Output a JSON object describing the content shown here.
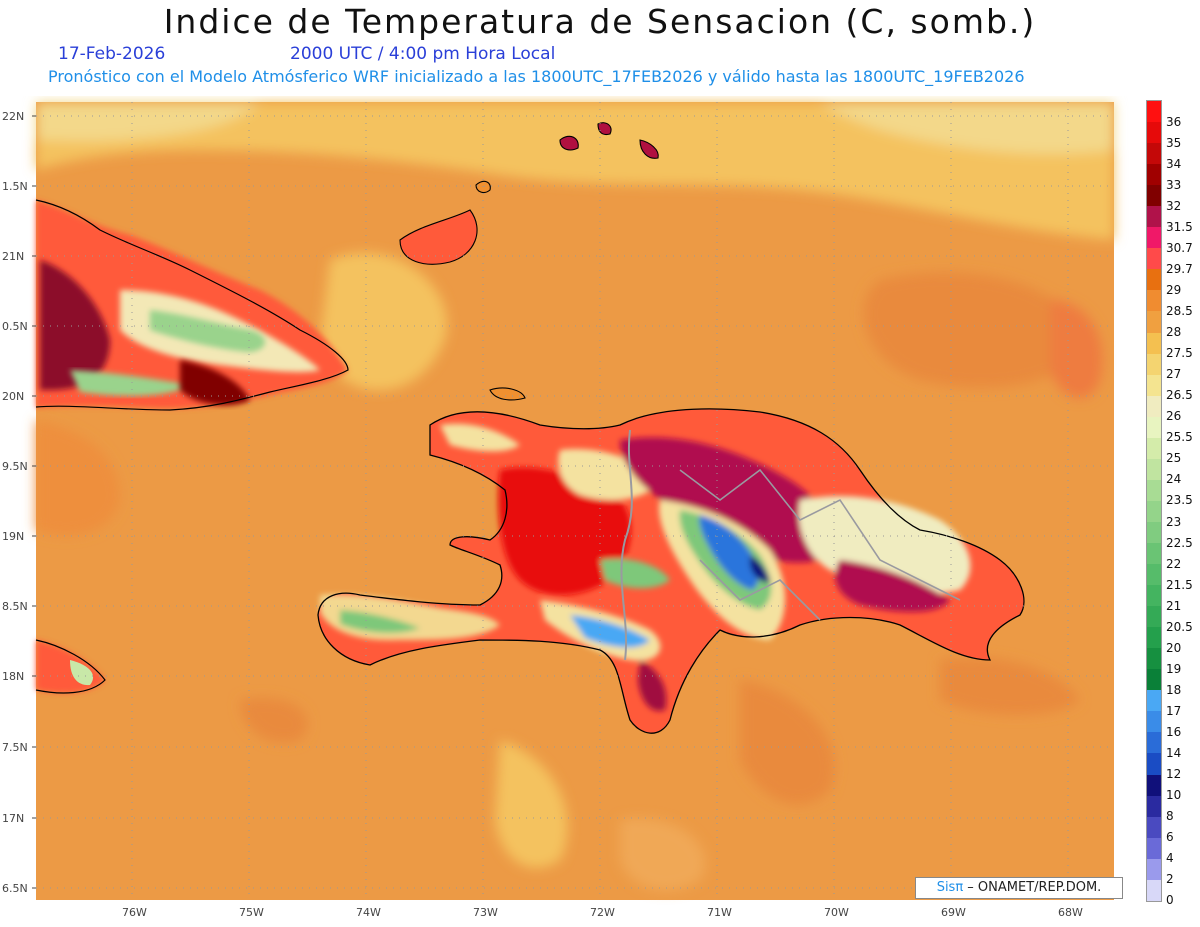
{
  "header": {
    "title": "Indice de Temperatura de Sensacion (C, somb.)",
    "date": "17-Feb-2026",
    "time": "2000 UTC / 4:00 pm Hora Local",
    "subtitle": "Pronóstico con el Modelo Atmósferico WRF inicializado a las 1800UTC_17FEB2026 y válido hasta las  1800UTC_19FEB2026"
  },
  "map": {
    "lat_labels": [
      "22N",
      "1.5N",
      "21N",
      "0.5N",
      "20N",
      "9.5N",
      "19N",
      "8.5N",
      "18N",
      "7.5N",
      "17N",
      "6.5N"
    ],
    "lon_labels": [
      "76W",
      "75W",
      "74W",
      "73W",
      "72W",
      "71W",
      "70W",
      "69W",
      "68W"
    ],
    "credit_brand": "Sisπ",
    "credit_text": " – ONAMET/REP.DOM."
  },
  "legend": {
    "levels": [
      "36",
      "35",
      "34",
      "33",
      "32",
      "31.5",
      "30.7",
      "29.7",
      "29",
      "28.5",
      "28",
      "27.5",
      "27",
      "26.5",
      "26",
      "25.5",
      "25",
      "24",
      "23.5",
      "23",
      "22.5",
      "22",
      "21.5",
      "21",
      "20.5",
      "20",
      "19",
      "18",
      "17",
      "16",
      "14",
      "12",
      "10",
      "8",
      "6",
      "4",
      "2",
      "0"
    ],
    "colors": [
      "#ff1010",
      "#e60a0a",
      "#c40808",
      "#a00000",
      "#800000",
      "#b0124a",
      "#f01868",
      "#ff4a4a",
      "#e87010",
      "#f08c30",
      "#f0a040",
      "#f4c050",
      "#f4d470",
      "#f4e490",
      "#f0ecc0",
      "#e8f4c0",
      "#d4ecaa",
      "#c0e4a0",
      "#a8dc94",
      "#94d48a",
      "#80cc80",
      "#6ac474",
      "#56bc6a",
      "#44b460",
      "#34aa56",
      "#24a04c",
      "#169040",
      "#0a8038",
      "#4aa8f4",
      "#3a8ce8",
      "#2a6cd8",
      "#1a4cc4",
      "#10107a",
      "#2a2aa0",
      "#4a4ac0",
      "#6a6ad8",
      "#9a9aec",
      "#d8d8f8"
    ]
  }
}
